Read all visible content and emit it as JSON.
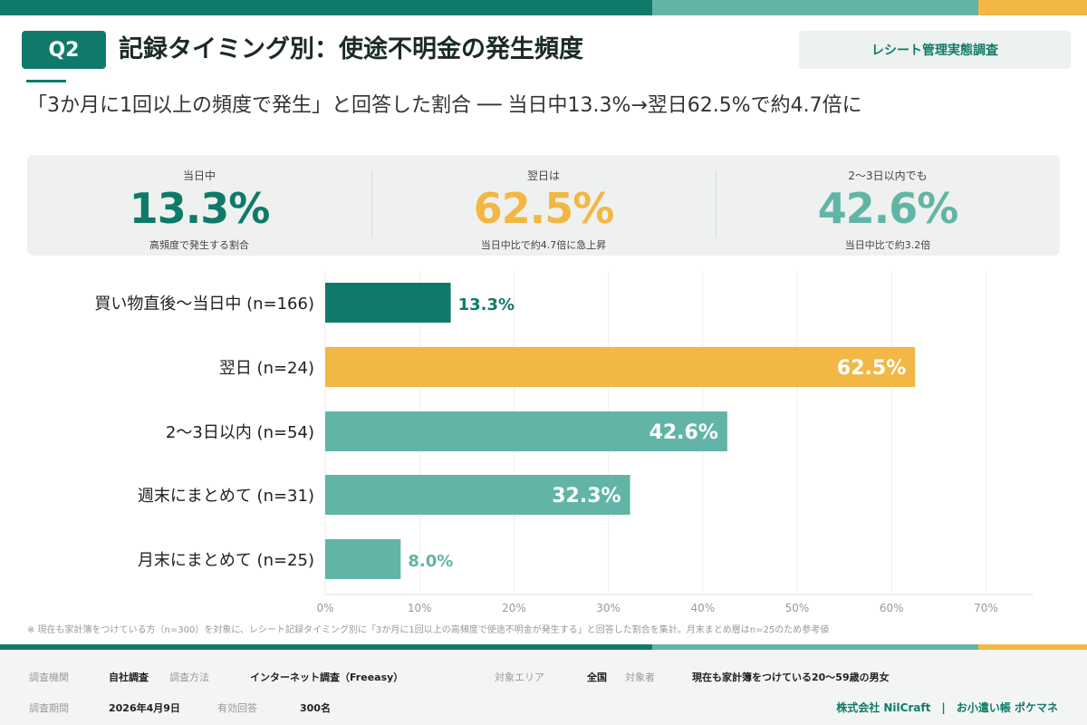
{
  "header": {
    "q": "Q2",
    "title": "記録タイミング別：使途不明金の発生頻度",
    "tag": "レシート管理実態調査",
    "subtitle": "「3か月に1回以上の頻度で発生」と回答した割合 ── 当日中13.3%→翌日62.5%で約4.7倍に"
  },
  "kpis": [
    {
      "label": "当日中",
      "value": "13.3%",
      "note": "高頻度で発生する割合",
      "color": "#0f7a69"
    },
    {
      "label": "翌日は",
      "value": "62.5%",
      "note": "当日中比で約4.7倍に急上昇",
      "color": "#f2b744"
    },
    {
      "label": "2〜3日以内でも",
      "value": "42.6%",
      "note": "当日中比で約3.2倍",
      "color": "#62b5a6"
    }
  ],
  "chart_data": {
    "type": "bar",
    "orientation": "horizontal",
    "categories": [
      "買い物直後〜当日中 (n=166)",
      "翌日 (n=24)",
      "2〜3日以内 (n=54)",
      "週末にまとめて (n=31)",
      "月末にまとめて (n=25)"
    ],
    "values": [
      13.3,
      62.5,
      42.6,
      32.3,
      8.0
    ],
    "value_labels": [
      "13.3%",
      "62.5%",
      "42.6%",
      "32.3%",
      "8.0%"
    ],
    "colors": [
      "#0f7a69",
      "#f2b744",
      "#62b5a6",
      "#62b5a6",
      "#62b5a6"
    ],
    "xlim": [
      0,
      75
    ],
    "xticks": [
      "0%",
      "10%",
      "20%",
      "30%",
      "40%",
      "50%",
      "60%",
      "70%"
    ],
    "grid": true
  },
  "note": "※ 現在も家計簿をつけている方（n=300）を対象に、レシート記録タイミング別に「3か月に1回以上の高頻度で使途不明金が発生する」と回答した割合を集計。月末まとめ層はn=25のため参考値",
  "footer": {
    "org_label": "調査機関",
    "org": "自社調査",
    "method_label": "調査方法",
    "method": "インターネット調査（Freeasy）",
    "area_label": "対象エリア",
    "area": "全国",
    "target_label": "対象者",
    "target": "現在も家計簿をつけている20〜59歳の男女",
    "period_label": "調査期間",
    "period": "2026年4月9日",
    "resp_label": "有効回答",
    "resp": "300名",
    "brand": "株式会社 NilCraft　|　お小遣い帳 ポケマネ"
  }
}
